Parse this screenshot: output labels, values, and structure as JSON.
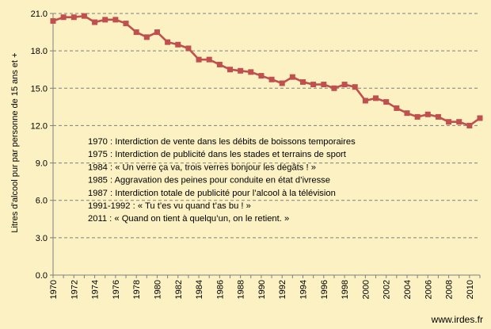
{
  "chart_data": {
    "type": "line",
    "title": "",
    "xlabel": "",
    "ylabel": "Litres d’alcool pur par personne de 15 ans et +",
    "xlim": [
      1970,
      2011
    ],
    "ylim": [
      0,
      21
    ],
    "y_ticks": [
      "0.0",
      "3.0",
      "6.0",
      "9.0",
      "12.0",
      "15.0",
      "18.0",
      "21.0"
    ],
    "x_ticks": [
      "1970",
      "1972",
      "1974",
      "1976",
      "1978",
      "1980",
      "1982",
      "1984",
      "1986",
      "1988",
      "1990",
      "1992",
      "1994",
      "1996",
      "1998",
      "2000",
      "2002",
      "2004",
      "2006",
      "2008",
      "2010"
    ],
    "grid": "horizontal-dashed",
    "series": [
      {
        "color": "#c0504d",
        "x": [
          1970,
          1971,
          1972,
          1973,
          1974,
          1975,
          1976,
          1977,
          1978,
          1979,
          1980,
          1981,
          1982,
          1983,
          1984,
          1985,
          1986,
          1987,
          1988,
          1989,
          1990,
          1991,
          1992,
          1993,
          1994,
          1995,
          1996,
          1997,
          1998,
          1999,
          2000,
          2001,
          2002,
          2003,
          2004,
          2005,
          2006,
          2007,
          2008,
          2009,
          2010,
          2011
        ],
        "values": [
          20.4,
          20.7,
          20.7,
          20.8,
          20.3,
          20.5,
          20.5,
          20.2,
          19.5,
          19.1,
          19.5,
          18.7,
          18.5,
          18.2,
          17.3,
          17.3,
          16.9,
          16.5,
          16.4,
          16.3,
          16.0,
          15.7,
          15.4,
          15.9,
          15.5,
          15.3,
          15.3,
          15.0,
          15.3,
          15.1,
          14.0,
          14.2,
          13.9,
          13.4,
          13.0,
          12.7,
          12.9,
          12.7,
          12.3,
          12.3,
          12.0,
          12.6
        ]
      }
    ],
    "annotations": [
      "1970 : Interdiction de vente dans les débits de boissons temporaires",
      "1975 : Interdiction de publicité dans les stades et terrains de sport",
      "1984 : « Un verre ça va, trois verres bonjour les dégâts ! »",
      "1985 : Aggravation des peines pour conduite en état d’ivresse",
      "1987 : Interdiction totale de publicité pour  l’alcool à la télévision",
      "1991-1992 : « Tu t’es vu quand t’as  bu ! »",
      "2011 : « Quand on tient à quelqu’un, on le retient. »"
    ]
  },
  "credit": "www.irdes.fr"
}
